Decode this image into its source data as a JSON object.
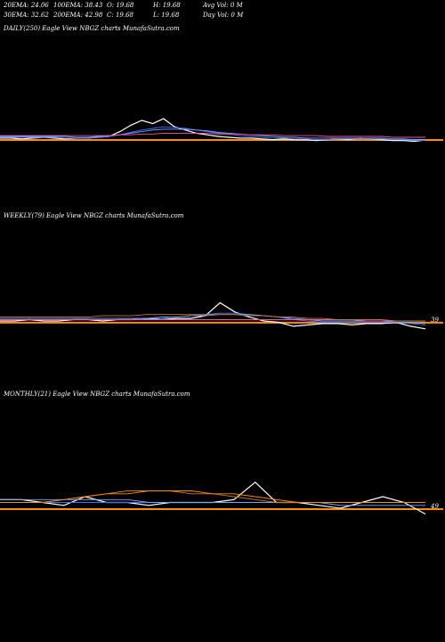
{
  "header": {
    "rows": [
      [
        "20EMA: 24.06",
        "100EMA: 38.43",
        "O: 19.68",
        "H: 19.68",
        "Avg Vol: 0  M"
      ],
      [
        "30EMA: 32.62",
        "200EMA: 42.98",
        "C: 19.68",
        "L: 19.68",
        "Day Vol: 0  M"
      ]
    ]
  },
  "chart_data": [
    {
      "type": "line",
      "title": "DAILY(250) Eagle  View  NBGZ charts MunafaSutra.com",
      "ylim": [
        -50,
        160
      ],
      "hline": 19.68,
      "hline_color": "#ff8c00",
      "series": [
        {
          "name": "Price",
          "color": "#ffffff",
          "values": [
            22,
            22,
            21,
            22,
            23,
            22,
            21,
            22,
            22,
            23,
            24,
            30,
            38,
            44,
            40,
            46,
            36,
            32,
            28,
            26,
            24,
            23,
            22,
            22,
            21,
            20,
            21,
            20,
            20,
            19,
            20,
            21,
            20,
            22,
            21,
            20,
            19,
            19,
            18,
            19.68
          ]
        },
        {
          "name": "20EMA",
          "color": "#3b6fff",
          "values": [
            23,
            23,
            23,
            23,
            23,
            23,
            22,
            22,
            22,
            23,
            24,
            26,
            29,
            32,
            34,
            36,
            35,
            34,
            32,
            30,
            28,
            27,
            25,
            24,
            23,
            22,
            22,
            21,
            21,
            20,
            20,
            21,
            21,
            21,
            21,
            21,
            20,
            20,
            19,
            19
          ]
        },
        {
          "name": "30EMA",
          "color": "#6fa8ff",
          "values": [
            24,
            24,
            24,
            24,
            24,
            24,
            24,
            23,
            23,
            24,
            25,
            26,
            28,
            30,
            32,
            33,
            33,
            33,
            32,
            31,
            29,
            28,
            27,
            26,
            25,
            24,
            23,
            23,
            22,
            22,
            22,
            22,
            22,
            22,
            22,
            22,
            21,
            21,
            20,
            20
          ]
        },
        {
          "name": "100EMA",
          "color": "#ff4fa0",
          "values": [
            25,
            25,
            25,
            25,
            25,
            25,
            25,
            25,
            25,
            25,
            25,
            26,
            26,
            27,
            27,
            28,
            28,
            28,
            28,
            28,
            27,
            27,
            27,
            26,
            26,
            26,
            25,
            25,
            25,
            25,
            24,
            24,
            24,
            24,
            24,
            24,
            23,
            23,
            23,
            23
          ]
        }
      ]
    },
    {
      "type": "line",
      "title": "WEEKLY(79) Eagle  View  NBGZ charts MunafaSutra.com",
      "ylim": [
        -20,
        103
      ],
      "hline": 19.68,
      "hline_color": "#ff8c00",
      "last_label": "39",
      "series": [
        {
          "name": "Price",
          "color": "#ffffff",
          "values": [
            21,
            21,
            22,
            21,
            21,
            22,
            22,
            21,
            22,
            22,
            23,
            22,
            23,
            23,
            25,
            35,
            28,
            24,
            21,
            20,
            17,
            18,
            19,
            19,
            18,
            19,
            19,
            20,
            17,
            15
          ]
        },
        {
          "name": "20EMA",
          "color": "#3b6fff",
          "values": [
            22,
            22,
            22,
            22,
            22,
            22,
            22,
            22,
            22,
            22,
            23,
            23,
            24,
            25,
            26,
            27,
            27,
            26,
            25,
            24,
            22,
            21,
            20,
            20,
            20,
            20,
            20,
            20,
            19,
            18
          ]
        },
        {
          "name": "30EMA",
          "color": "#6fa8ff",
          "values": [
            23,
            23,
            23,
            23,
            23,
            23,
            23,
            23,
            23,
            23,
            23,
            24,
            24,
            25,
            25,
            26,
            26,
            26,
            25,
            24,
            23,
            22,
            21,
            21,
            21,
            21,
            21,
            20,
            20,
            19
          ]
        },
        {
          "name": "100EMA",
          "color": "#ff4fa0",
          "values": [
            22,
            22,
            22,
            22,
            22,
            22,
            22,
            22,
            22,
            22,
            22,
            22,
            22,
            22,
            22,
            22,
            22,
            22,
            22,
            22,
            22,
            22,
            22,
            22,
            22,
            21,
            21,
            21,
            21,
            21
          ]
        },
        {
          "name": "200EMA",
          "color": "#c87a2a",
          "values": [
            24,
            24,
            24,
            24,
            24,
            24,
            24,
            25,
            25,
            25,
            26,
            26,
            26,
            26,
            26,
            26,
            26,
            25,
            25,
            24,
            24,
            23,
            23,
            22,
            22,
            22,
            22,
            21,
            21,
            21
          ]
        }
      ]
    },
    {
      "type": "line",
      "title": "MONTHLY(21) Eagle  View  NBGZ charts MunafaSutra.com",
      "ylim": [
        -20,
        60
      ],
      "hline": 19.68,
      "hline_color": "#ff8c00",
      "last_label": "49",
      "series": [
        {
          "name": "Price",
          "color": "#ffffff",
          "values": [
            23,
            23,
            22,
            21,
            24,
            22,
            22,
            21,
            22,
            22,
            22,
            23,
            29,
            22,
            22,
            21,
            20,
            22,
            24,
            22,
            18
          ]
        },
        {
          "name": "20EMA",
          "color": "#3b6fff",
          "values": [
            22,
            22,
            22,
            22,
            22,
            22,
            22,
            22,
            22,
            22,
            22,
            22,
            22,
            22,
            22,
            22,
            22,
            22,
            22,
            22,
            22
          ]
        },
        {
          "name": "30EMA",
          "color": "#6fa8ff",
          "values": [
            23,
            23,
            23,
            23,
            23,
            23,
            23,
            22,
            22,
            22,
            22,
            22,
            22,
            22,
            22,
            22,
            21,
            21,
            21,
            21,
            21
          ]
        },
        {
          "name": "100EMA",
          "color": "#c87a2a",
          "values": [
            22,
            22,
            22,
            23,
            24,
            25,
            26,
            26,
            26,
            25,
            25,
            24,
            23,
            22,
            22,
            22,
            22,
            22,
            22,
            22,
            22
          ]
        },
        {
          "name": "200EMA",
          "color": "#ff8c00",
          "values": [
            22,
            22,
            22,
            23,
            24,
            25,
            25,
            26,
            26,
            26,
            25,
            25,
            24,
            23,
            22,
            22,
            22,
            22,
            22,
            22,
            22
          ]
        }
      ]
    }
  ]
}
